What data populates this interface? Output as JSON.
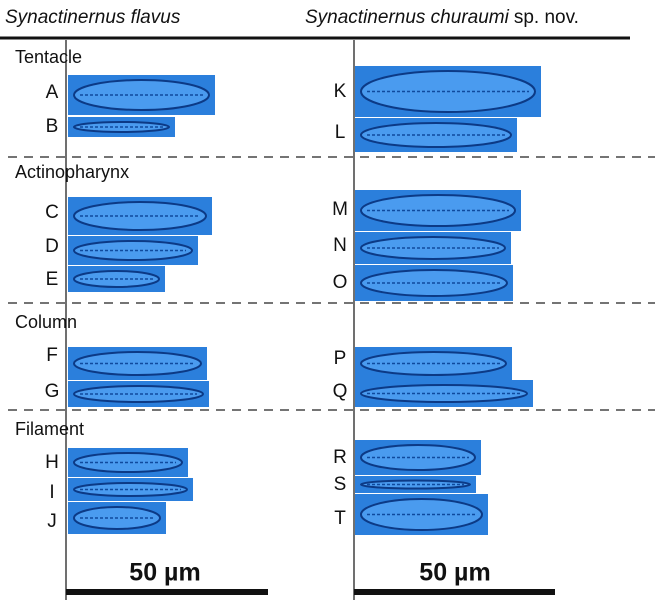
{
  "header": {
    "left": "Synactinernus flavus",
    "right_name": "Synactinernus churaumi",
    "right_suffix": "sp. nov."
  },
  "sections": [
    {
      "label": "Tentacle",
      "left": [
        "A",
        "B"
      ],
      "right": [
        "K",
        "L"
      ]
    },
    {
      "label": "Actinopharynx",
      "left": [
        "C",
        "D",
        "E"
      ],
      "right": [
        "M",
        "N",
        "O"
      ]
    },
    {
      "label": "Column",
      "left": [
        "F",
        "G"
      ],
      "right": [
        "P",
        "Q"
      ]
    },
    {
      "label": "Filament",
      "left": [
        "H",
        "I",
        "J"
      ],
      "right": [
        "R",
        "S",
        "T"
      ]
    }
  ],
  "scale_bars": [
    "50 µm",
    "50 µm"
  ]
}
